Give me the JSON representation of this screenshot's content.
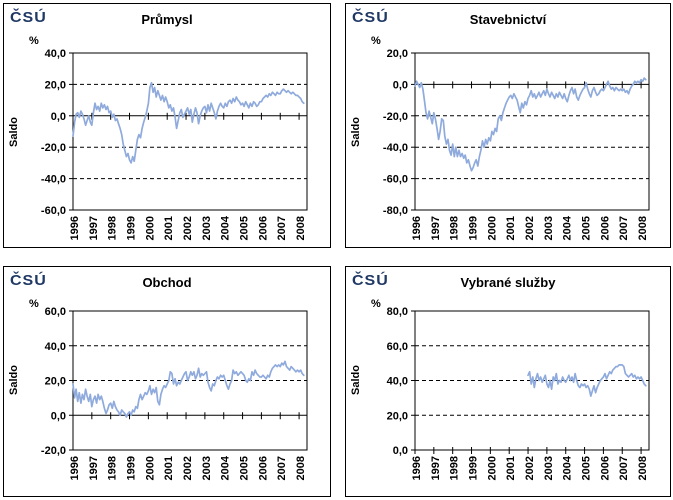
{
  "logo": {
    "text": "ČSÚ",
    "color": "#1F3864"
  },
  "chart_data": [
    {
      "type": "line",
      "title": "Průmysl",
      "unit": "%",
      "ylabel": "Saldo",
      "series_name": "Saldo",
      "line_color": "#8FAADC",
      "grid": "dashed-horizontal",
      "legend": "none",
      "x_min": 1996,
      "x_max": 2008.42,
      "x_tick_values": [
        1996,
        1997,
        1998,
        1999,
        2000,
        2001,
        2002,
        2003,
        2004,
        2005,
        2006,
        2007,
        2008
      ],
      "x_tick_labels": [
        "1996",
        "1997",
        "1998",
        "1999",
        "2000",
        "2001",
        "2002",
        "2003",
        "2004",
        "2005",
        "2006",
        "2007",
        "2008"
      ],
      "y_min": -60,
      "y_max": 40,
      "y_tick_values": [
        40,
        20,
        0,
        -20,
        -40,
        -60
      ],
      "y_tick_labels": [
        "40,0",
        "20,0",
        "0,0",
        "-20,0",
        "-40,0",
        "-60,0"
      ],
      "frequency": "monthly",
      "x_start": 1996.0,
      "values": [
        -13,
        -4,
        1,
        2,
        -1,
        3,
        1,
        -2,
        -6,
        -3,
        0,
        -4,
        -6,
        2,
        8,
        4,
        6,
        3,
        8,
        5,
        7,
        4,
        6,
        2,
        3,
        -1,
        1,
        -3,
        -2,
        -5,
        -8,
        -12,
        -18,
        -22,
        -26,
        -24,
        -28,
        -30,
        -26,
        -29,
        -22,
        -15,
        -12,
        -14,
        -8,
        -4,
        -1,
        3,
        8,
        18,
        21,
        15,
        18,
        12,
        16,
        13,
        10,
        13,
        9,
        12,
        9,
        5,
        7,
        3,
        5,
        -1,
        -8,
        -3,
        2,
        4,
        -1,
        1,
        3,
        5,
        1,
        4,
        -4,
        1,
        5,
        2,
        -5,
        0,
        3,
        5,
        6,
        2,
        7,
        3,
        8,
        5,
        2,
        -2,
        3,
        6,
        8,
        6,
        5,
        8,
        6,
        9,
        10,
        8,
        11,
        9,
        12,
        10,
        9,
        7,
        8,
        6,
        9,
        7,
        5,
        8,
        6,
        9,
        8,
        6,
        7,
        9,
        9,
        11,
        12,
        13,
        12,
        14,
        13,
        15,
        14,
        13,
        15,
        14,
        14,
        16,
        17,
        16,
        15,
        16,
        15,
        14,
        15,
        14,
        13,
        13,
        12,
        11,
        9,
        8
      ]
    },
    {
      "type": "line",
      "title": "Stavebnictví",
      "unit": "%",
      "ylabel": "Saldo",
      "series_name": "Saldo",
      "line_color": "#8FAADC",
      "grid": "dashed-horizontal",
      "legend": "none",
      "x_min": 1996,
      "x_max": 2008.42,
      "x_tick_values": [
        1996,
        1997,
        1998,
        1999,
        2000,
        2001,
        2002,
        2003,
        2004,
        2005,
        2006,
        2007,
        2008
      ],
      "x_tick_labels": [
        "1996",
        "1997",
        "1998",
        "1999",
        "2000",
        "2001",
        "2002",
        "2003",
        "2004",
        "2005",
        "2006",
        "2007",
        "2008"
      ],
      "y_min": -80,
      "y_max": 20,
      "y_tick_values": [
        20,
        0,
        -20,
        -40,
        -60,
        -80
      ],
      "y_tick_labels": [
        "20,0",
        "0,0",
        "-20,0",
        "-40,0",
        "-60,0",
        "-80,0"
      ],
      "frequency": "monthly",
      "x_start": 1996.0,
      "values": [
        -1,
        2,
        0,
        -2,
        1,
        -3,
        -10,
        -18,
        -22,
        -17,
        -21,
        -25,
        -18,
        -22,
        -28,
        -35,
        -30,
        -22,
        -23,
        -33,
        -38,
        -35,
        -42,
        -45,
        -38,
        -46,
        -40,
        -46,
        -42,
        -46,
        -44,
        -47,
        -45,
        -50,
        -48,
        -52,
        -55,
        -53,
        -50,
        -48,
        -52,
        -46,
        -42,
        -36,
        -40,
        -35,
        -38,
        -34,
        -36,
        -30,
        -32,
        -28,
        -30,
        -22,
        -20,
        -23,
        -18,
        -15,
        -12,
        -10,
        -8,
        -7,
        -9,
        -6,
        -8,
        -10,
        -14,
        -18,
        -12,
        -15,
        -11,
        -13,
        -9,
        -7,
        -4,
        -8,
        -6,
        -9,
        -7,
        -5,
        -8,
        -6,
        -4,
        -7,
        -3,
        -6,
        -8,
        -5,
        -7,
        -9,
        -6,
        -8,
        -5,
        -7,
        -9,
        -6,
        -9,
        -11,
        -7,
        -4,
        -2,
        -6,
        -3,
        -8,
        -10,
        -7,
        -5,
        -3,
        -2,
        1,
        -3,
        -6,
        -8,
        -4,
        -2,
        -5,
        -7,
        -6,
        -4,
        -3,
        -4,
        -2,
        0,
        2,
        -1,
        -3,
        -2,
        -4,
        -2,
        -3,
        -4,
        -3,
        -4,
        -3,
        -5,
        -4,
        -6,
        -3,
        -1,
        0,
        2,
        1,
        2,
        1,
        3,
        2,
        4,
        3
      ]
    },
    {
      "type": "line",
      "title": "Obchod",
      "unit": "%",
      "ylabel": "Saldo",
      "series_name": "Saldo",
      "line_color": "#8FAADC",
      "grid": "dashed-horizontal",
      "legend": "none",
      "x_min": 1996,
      "x_max": 2008.42,
      "x_tick_values": [
        1996,
        1997,
        1998,
        1999,
        2000,
        2001,
        2002,
        2003,
        2004,
        2005,
        2006,
        2007,
        2008
      ],
      "x_tick_labels": [
        "1996",
        "1997",
        "1998",
        "1999",
        "2000",
        "2001",
        "2002",
        "2003",
        "2004",
        "2005",
        "2006",
        "2007",
        "2008"
      ],
      "y_min": -20,
      "y_max": 60,
      "y_tick_values": [
        60,
        40,
        20,
        0,
        -20
      ],
      "y_tick_labels": [
        "60,0",
        "40,0",
        "20,0",
        "0,0",
        "-20,0"
      ],
      "frequency": "monthly",
      "x_start": 1996.0,
      "values": [
        18,
        10,
        15,
        8,
        13,
        7,
        12,
        9,
        15,
        11,
        8,
        12,
        5,
        9,
        11,
        7,
        12,
        9,
        11,
        8,
        4,
        1,
        3,
        6,
        7,
        4,
        8,
        5,
        3,
        2,
        0,
        3,
        2,
        1,
        -1,
        1,
        2,
        0,
        3,
        2,
        5,
        4,
        9,
        12,
        9,
        11,
        13,
        12,
        14,
        17,
        12,
        15,
        13,
        16,
        8,
        6,
        12,
        15,
        17,
        16,
        18,
        20,
        25,
        24,
        18,
        21,
        17,
        19,
        18,
        20,
        22,
        24,
        25,
        20,
        22,
        25,
        23,
        25,
        21,
        23,
        27,
        22,
        24,
        23,
        24,
        25,
        19,
        16,
        14,
        18,
        17,
        20,
        22,
        21,
        23,
        22,
        23,
        20,
        17,
        15,
        18,
        20,
        26,
        24,
        25,
        23,
        24,
        25,
        24,
        23,
        20,
        19,
        21,
        20,
        25,
        23,
        26,
        24,
        23,
        22,
        22,
        23,
        22,
        21,
        23,
        22,
        25,
        27,
        28,
        29,
        28,
        29,
        28,
        30,
        29,
        31,
        28,
        27,
        26,
        28,
        27,
        26,
        25,
        26,
        25,
        26,
        24,
        23
      ]
    },
    {
      "type": "line",
      "title": "Vybrané služby",
      "unit": "%",
      "ylabel": "Saldo",
      "series_name": "Saldo",
      "line_color": "#8FAADC",
      "grid": "dashed-horizontal",
      "legend": "none",
      "x_min": 1996,
      "x_max": 2008.42,
      "x_tick_values": [
        1996,
        1997,
        1998,
        1999,
        2000,
        2001,
        2002,
        2003,
        2004,
        2005,
        2006,
        2007,
        2008
      ],
      "x_tick_labels": [
        "1996",
        "1997",
        "1998",
        "1999",
        "2000",
        "2001",
        "2002",
        "2003",
        "2004",
        "2005",
        "2006",
        "2007",
        "2008"
      ],
      "y_min": 0,
      "y_max": 80,
      "y_tick_values": [
        80,
        60,
        40,
        20,
        0
      ],
      "y_tick_labels": [
        "80,0",
        "60,0",
        "40,0",
        "20,0",
        "0,0"
      ],
      "frequency": "monthly",
      "x_start": 2002.0,
      "values": [
        43,
        45,
        38,
        42,
        36,
        41,
        44,
        40,
        42,
        39,
        41,
        43,
        38,
        36,
        40,
        35,
        42,
        40,
        44,
        38,
        40,
        39,
        42,
        40,
        39,
        41,
        43,
        40,
        42,
        39,
        44,
        40,
        37,
        36,
        38,
        37,
        38,
        36,
        37,
        35,
        31,
        34,
        37,
        33,
        36,
        38,
        40,
        41,
        42,
        44,
        41,
        43,
        45,
        44,
        46,
        47,
        48,
        48,
        49,
        49,
        49,
        48,
        44,
        43,
        42,
        43,
        44,
        42,
        43,
        41,
        42,
        41,
        42,
        40,
        38,
        37
      ]
    }
  ]
}
